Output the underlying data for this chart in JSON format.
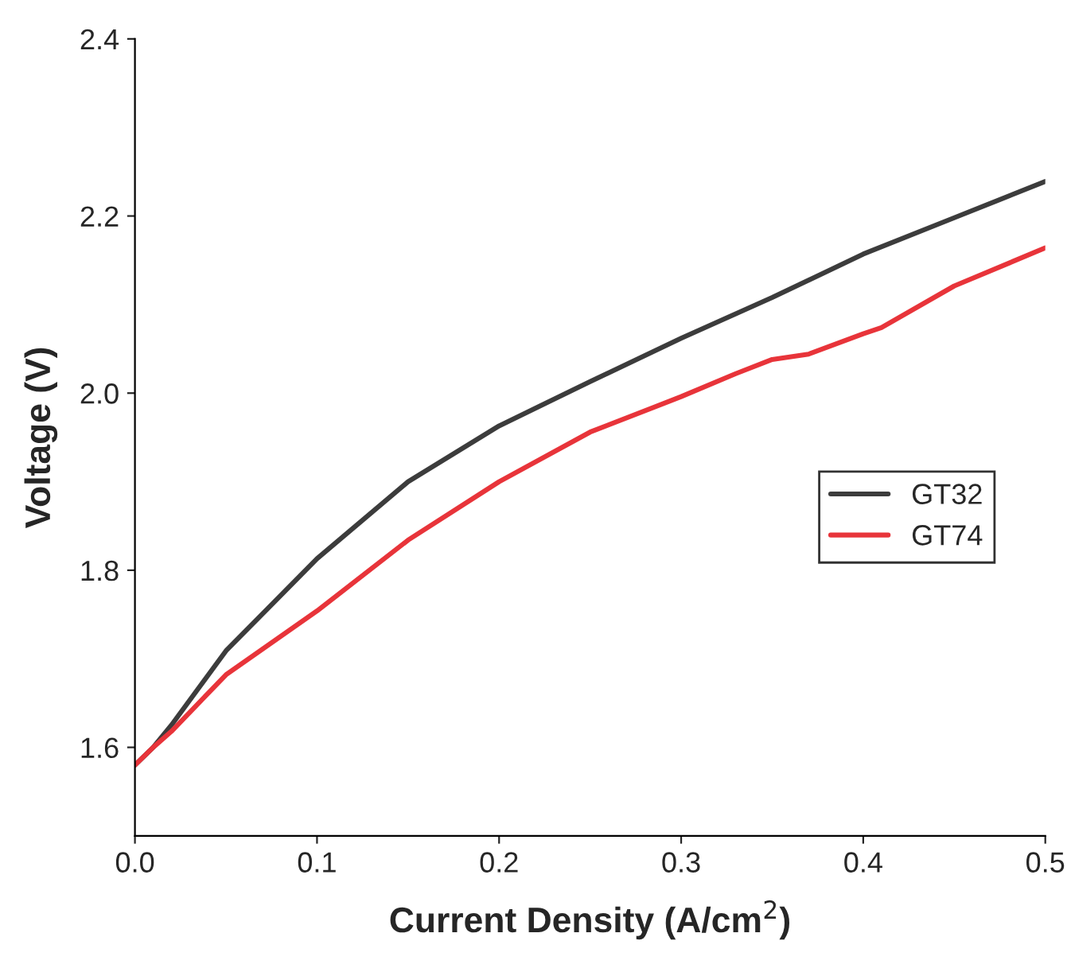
{
  "chart_data": {
    "type": "line",
    "xlabel": "Current Density (A/cm$^{2}$)",
    "ylabel": "Voltage (V)",
    "xlim": [
      0,
      0.5
    ],
    "ylim": [
      1.5,
      2.4
    ],
    "xticks": [
      {
        "value": 0,
        "label": "0.0"
      },
      0.1,
      0.2,
      0.3,
      0.4,
      0.5
    ],
    "yticks": [
      1.6,
      1.8,
      {
        "value": 2.0,
        "label": "2.0"
      },
      2.2,
      2.4
    ],
    "grid": false,
    "legend": "right",
    "marker": "none",
    "line_style": "solid",
    "series": [
      {
        "name": "GT32",
        "color": "#3c3c3c",
        "x": [
          0,
          0.01,
          0.02,
          0.05,
          0.1,
          0.15,
          0.2,
          0.25,
          0.3,
          0.35,
          0.4,
          0.45,
          0.5
        ],
        "values": [
          1.58,
          1.6,
          1.625,
          1.709,
          1.813,
          1.9,
          1.963,
          2.013,
          2.062,
          2.108,
          2.157,
          2.198,
          2.239
        ]
      },
      {
        "name": "GT74",
        "color": "#e8343a",
        "x": [
          0,
          0.01,
          0.02,
          0.05,
          0.1,
          0.15,
          0.2,
          0.25,
          0.3,
          0.33,
          0.35,
          0.37,
          0.4,
          0.41,
          0.45,
          0.5
        ],
        "values": [
          1.58,
          1.6,
          1.618,
          1.682,
          1.754,
          1.834,
          1.9,
          1.956,
          1.996,
          2.022,
          2.038,
          2.044,
          2.067,
          2.074,
          2.121,
          2.164
        ]
      }
    ]
  }
}
